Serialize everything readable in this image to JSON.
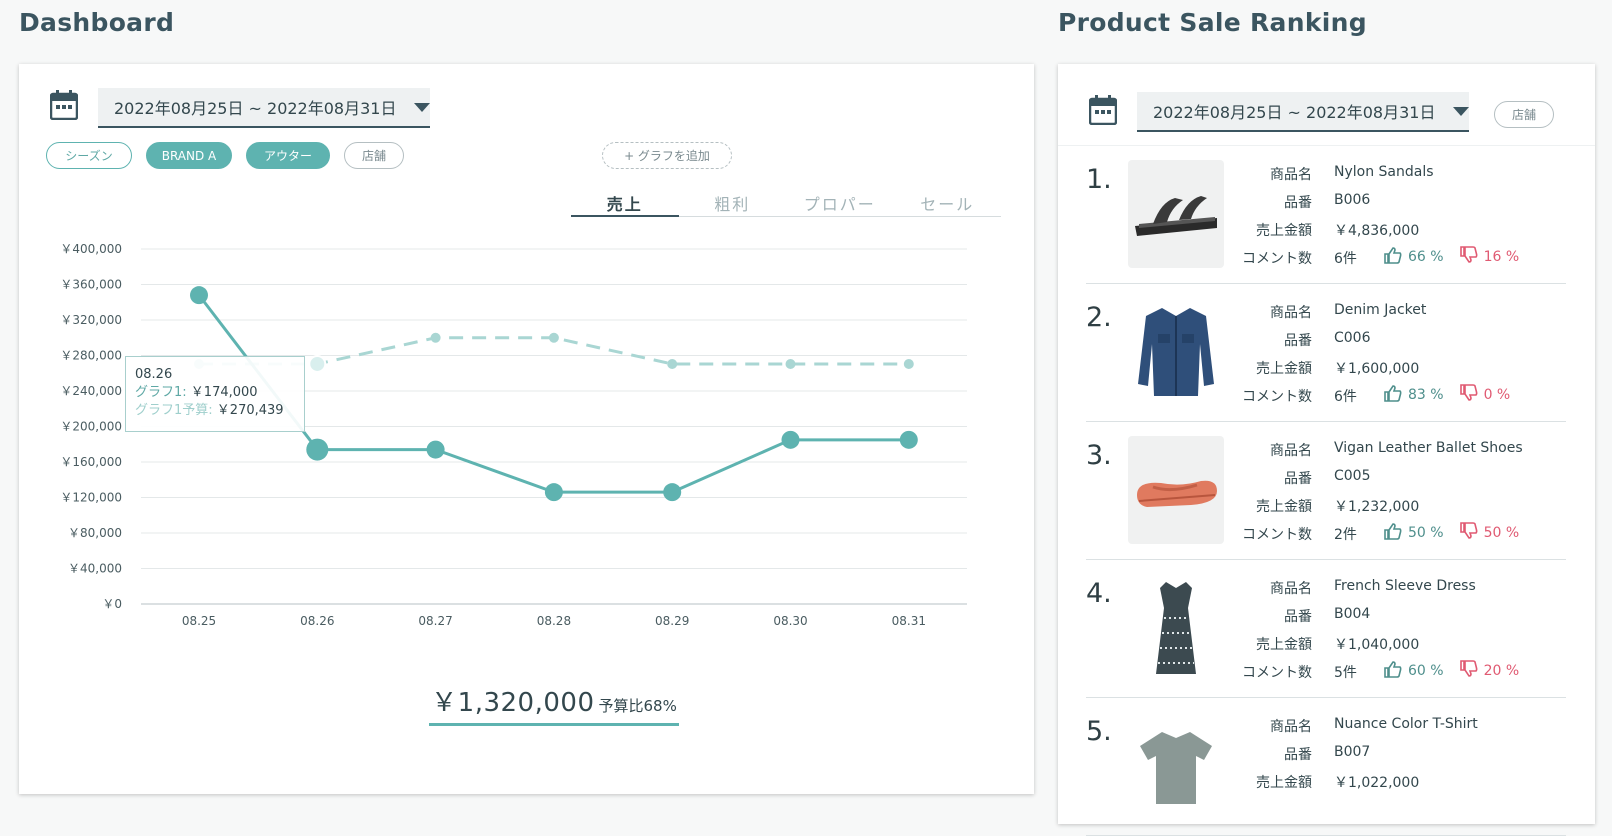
{
  "dashboard": {
    "title": "Dashboard",
    "date_range": "2022年08月25日 ~ 2022年08月31日",
    "filters": [
      {
        "label": "シーズン",
        "state": "outline"
      },
      {
        "label": "BRAND A",
        "state": "filled"
      },
      {
        "label": "アウター",
        "state": "filled"
      },
      {
        "label": "店舗",
        "state": "outline"
      }
    ],
    "add_graph_label": "+ グラフを追加",
    "tabs": [
      {
        "label": "売上",
        "active": true
      },
      {
        "label": "粗利",
        "active": false
      },
      {
        "label": "プロパー",
        "active": false
      },
      {
        "label": "セール",
        "active": false
      }
    ],
    "tooltip": {
      "date": "08.26",
      "series1_label": "グラフ1:",
      "series1_value": "￥174,000",
      "series2_label": "グラフ1予算:",
      "series2_value": "￥270,439"
    },
    "total_amount": "￥1,320,000",
    "total_ratio": "予算比68%"
  },
  "chart_data": {
    "type": "line",
    "x": [
      "08.25",
      "08.26",
      "08.27",
      "08.28",
      "08.29",
      "08.30",
      "08.31"
    ],
    "y_ticks": [
      "￥0",
      "￥40,000",
      "￥80,000",
      "￥120,000",
      "￥160,000",
      "￥200,000",
      "￥240,000",
      "￥280,000",
      "￥320,000",
      "￥360,000",
      "￥400,000"
    ],
    "ylim": [
      0,
      400000
    ],
    "grid": true,
    "series": [
      {
        "name": "グラフ1",
        "values": [
          348000,
          174000,
          174000,
          126000,
          126000,
          185000,
          185000
        ],
        "color": "#5eb3b0",
        "style": "solid"
      },
      {
        "name": "グラフ1予算",
        "values": [
          270439,
          270439,
          300000,
          300000,
          270439,
          270439,
          270439
        ],
        "color": "#a9d6d3",
        "style": "dashed"
      }
    ]
  },
  "ranking": {
    "title": "Product Sale Ranking",
    "date_range": "2022年08月25日 ~ 2022年08月31日",
    "store_chip": "店舗",
    "labels": {
      "name": "商品名",
      "code": "品番",
      "sales": "売上金額",
      "comments": "コメント数"
    },
    "items": [
      {
        "rank": "1.",
        "name": "Nylon Sandals",
        "code": "B006",
        "sales": "￥4,836,000",
        "comments": "6件",
        "up": "66 %",
        "down": "16 %",
        "icon": "sandal"
      },
      {
        "rank": "2.",
        "name": "Denim Jacket",
        "code": "C006",
        "sales": "￥1,600,000",
        "comments": "6件",
        "up": "83 %",
        "down": "0 %",
        "icon": "jacket"
      },
      {
        "rank": "3.",
        "name": "Vigan Leather Ballet Shoes",
        "code": "C005",
        "sales": "￥1,232,000",
        "comments": "2件",
        "up": "50 %",
        "down": "50 %",
        "icon": "shoe"
      },
      {
        "rank": "4.",
        "name": "French Sleeve Dress",
        "code": "B004",
        "sales": "￥1,040,000",
        "comments": "5件",
        "up": "60 %",
        "down": "20 %",
        "icon": "dress"
      },
      {
        "rank": "5.",
        "name": "Nuance Color T-Shirt",
        "code": "B007",
        "sales": "￥1,022,000",
        "comments": "",
        "up": "",
        "down": "",
        "icon": "tshirt"
      }
    ]
  }
}
